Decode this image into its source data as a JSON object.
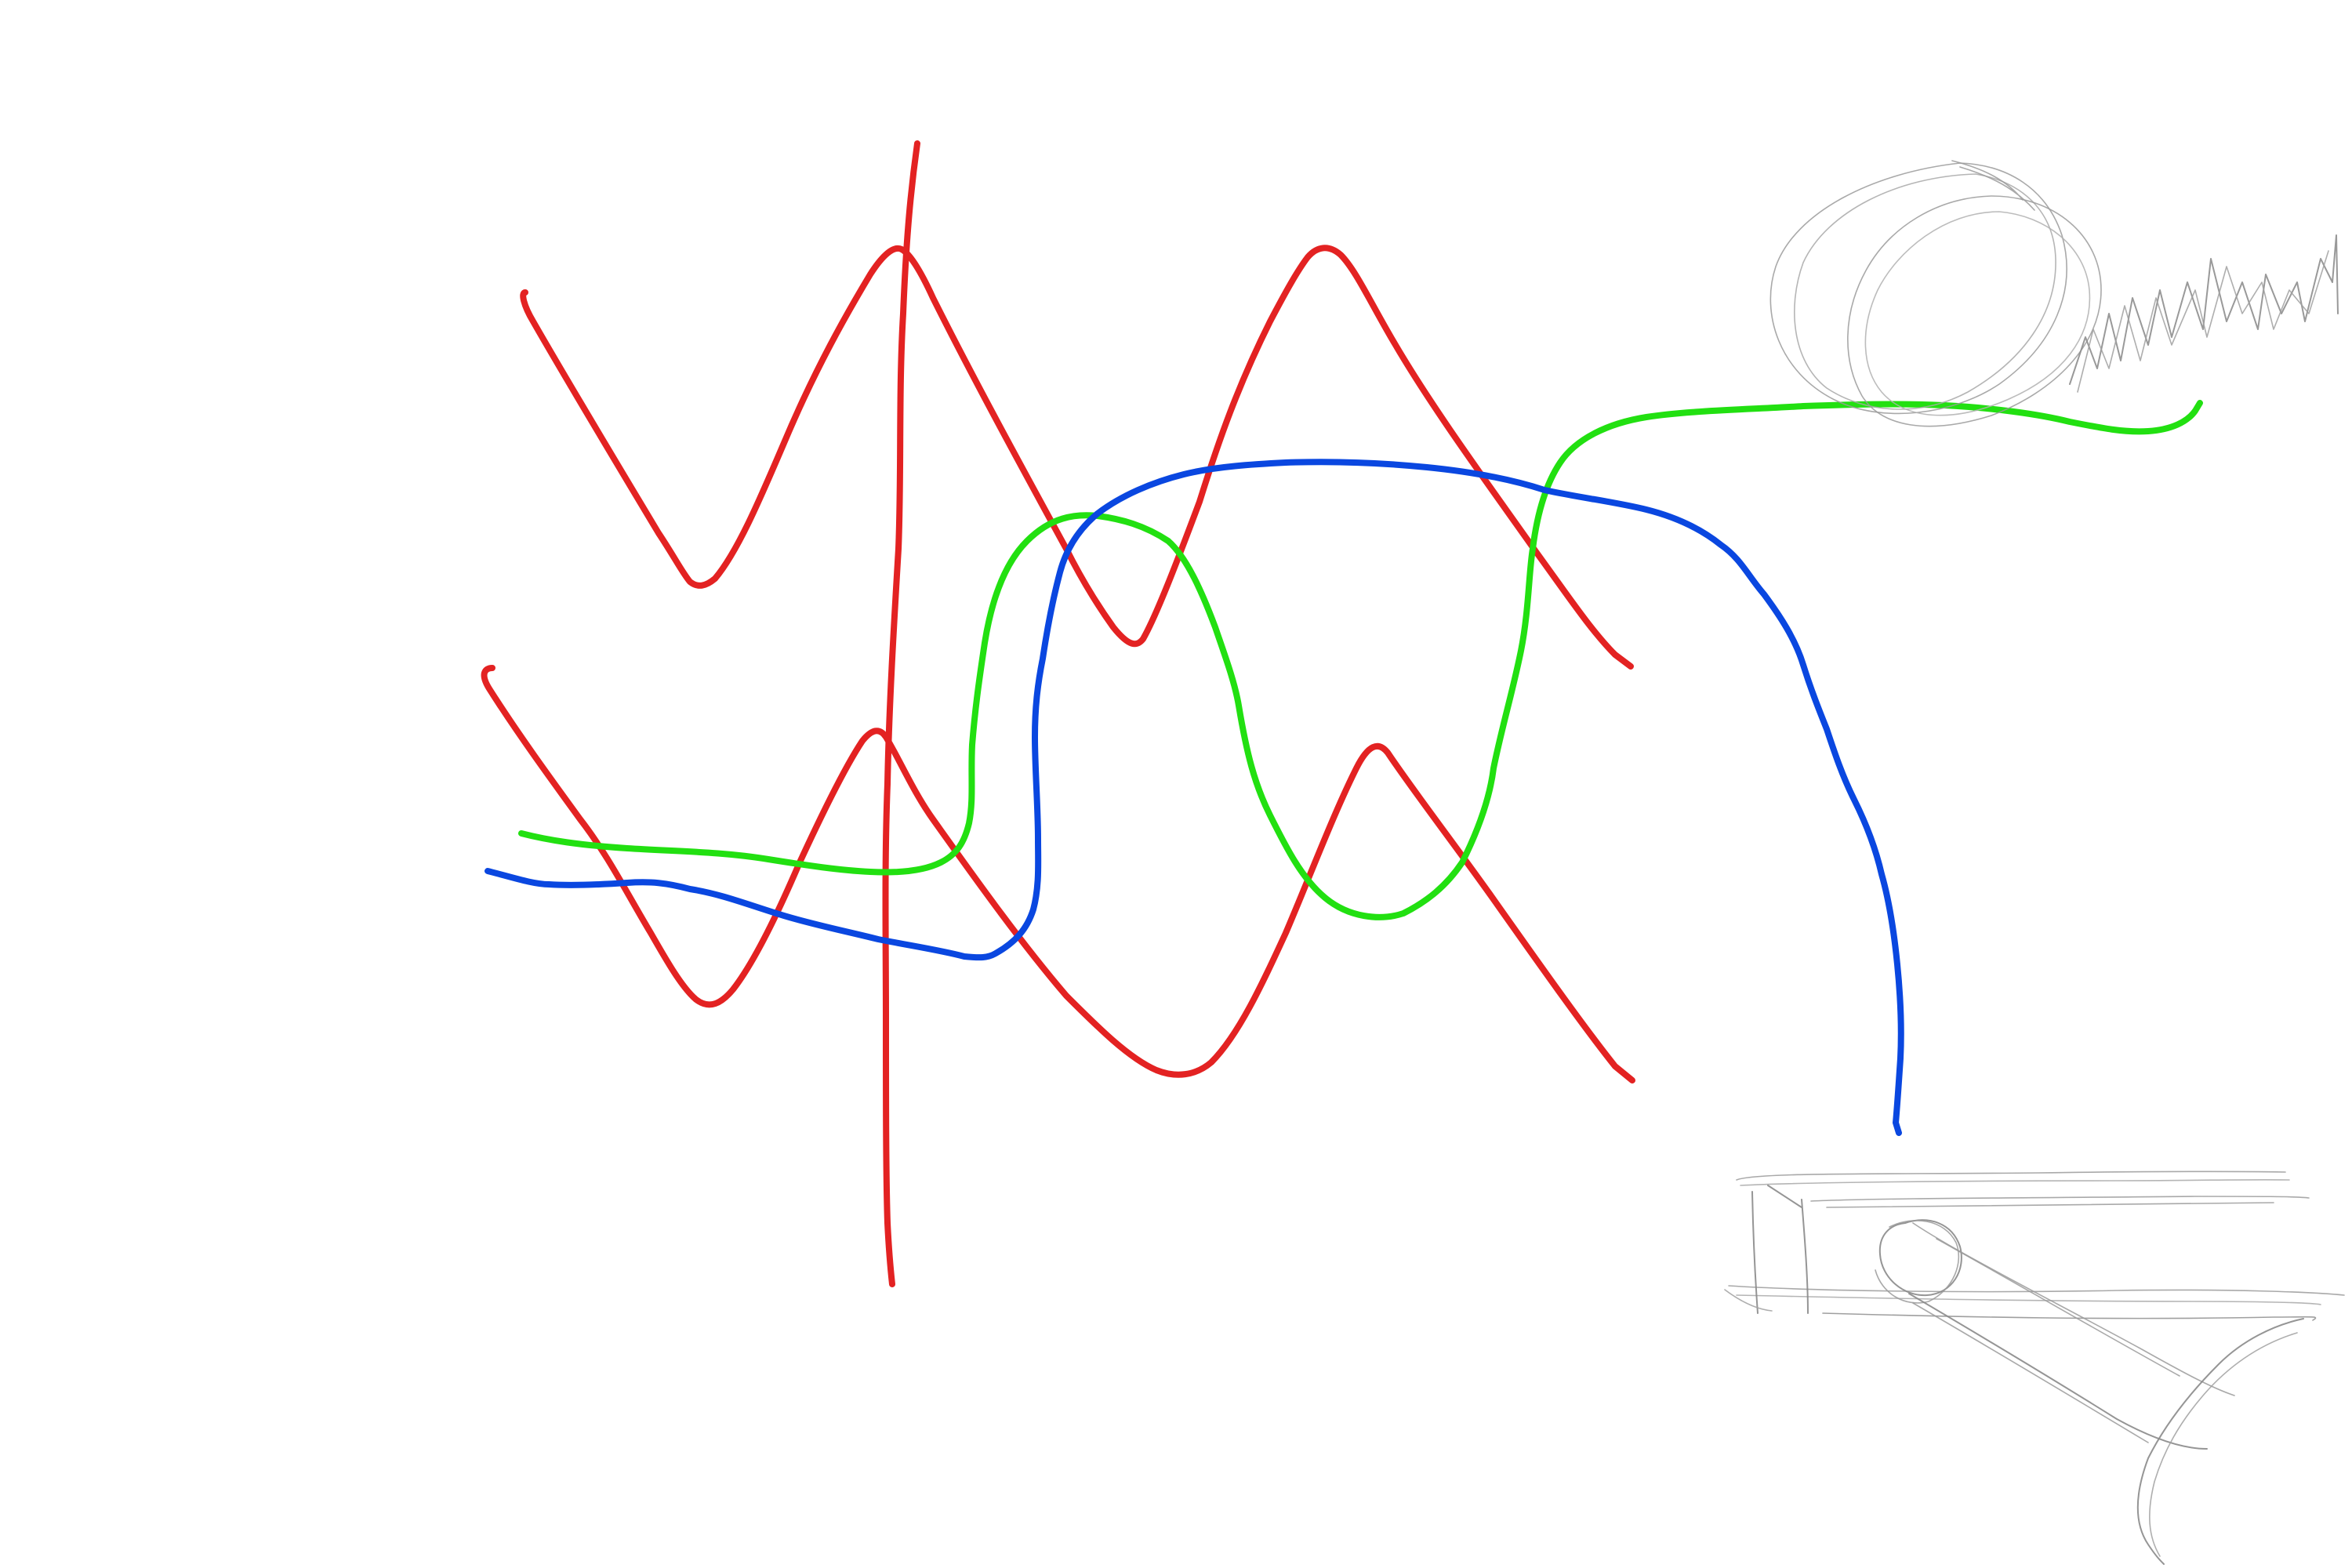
{
  "canvas": {
    "background": "#ffffff"
  },
  "strokes": [
    {
      "name": "red-vertical-stroke",
      "tool": "marker",
      "color": "#e32222"
    },
    {
      "name": "red-upper-zigzag-stroke",
      "tool": "marker",
      "color": "#e32222"
    },
    {
      "name": "red-lower-zigzag-stroke",
      "tool": "marker",
      "color": "#e32222"
    },
    {
      "name": "green-loop-stroke",
      "tool": "marker",
      "color": "#22e011"
    },
    {
      "name": "blue-arc-stroke",
      "tool": "marker",
      "color": "#0a47e0"
    },
    {
      "name": "gray-scribble-sketch",
      "tool": "pencil",
      "color": "#9a9a9a"
    },
    {
      "name": "gray-machine-sketch",
      "tool": "pencil",
      "color": "#8a8a8a"
    }
  ]
}
